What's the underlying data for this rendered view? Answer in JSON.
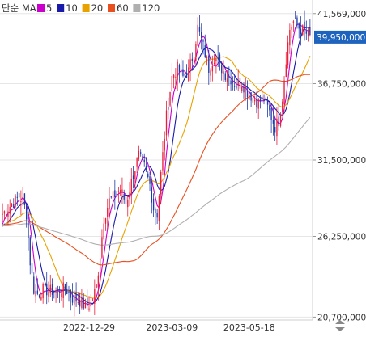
{
  "legend": {
    "prefix": "단순 MA",
    "items": [
      {
        "label": "5",
        "color": "#cc00cc"
      },
      {
        "label": "10",
        "color": "#1a1aaa"
      },
      {
        "label": "20",
        "color": "#e8a200"
      },
      {
        "label": "60",
        "color": "#e85020"
      },
      {
        "label": "120",
        "color": "#b0b0b0"
      }
    ]
  },
  "colors": {
    "up": "#e8203a",
    "down": "#1f3aa8",
    "price_tag": "#1e64be",
    "grid": "#e6e6e6",
    "text": "#333333"
  },
  "chart_data": {
    "type": "candlestick",
    "y_axis_labels": [
      "41,569,000",
      "36,750,000",
      "31,500,000",
      "26,250,000",
      "20,700,000"
    ],
    "y_ticks": [
      41569000,
      36750000,
      31500000,
      26250000,
      20700000
    ],
    "ylim": [
      20500000,
      42500000
    ],
    "x_tick_labels": [
      "2022-12-29",
      "2023-03-09",
      "2023-05-18"
    ],
    "current_price_label": "39,950,000",
    "current_price": 39950000,
    "anchors": [
      {
        "i": 0,
        "v": 27800000
      },
      {
        "i": 3,
        "v": 28200000
      },
      {
        "i": 6,
        "v": 28600000
      },
      {
        "i": 9,
        "v": 29000000
      },
      {
        "i": 11,
        "v": 28700000
      },
      {
        "i": 13,
        "v": 27800000
      },
      {
        "i": 15,
        "v": 24500000
      },
      {
        "i": 17,
        "v": 22600000
      },
      {
        "i": 19,
        "v": 22300000
      },
      {
        "i": 22,
        "v": 22600000
      },
      {
        "i": 26,
        "v": 22500000
      },
      {
        "i": 30,
        "v": 22500000
      },
      {
        "i": 34,
        "v": 22700000
      },
      {
        "i": 38,
        "v": 22000000
      },
      {
        "i": 42,
        "v": 21800000
      },
      {
        "i": 45,
        "v": 21400000
      },
      {
        "i": 48,
        "v": 21600000
      },
      {
        "i": 51,
        "v": 22800000
      },
      {
        "i": 53,
        "v": 25000000
      },
      {
        "i": 55,
        "v": 27500000
      },
      {
        "i": 58,
        "v": 28700000
      },
      {
        "i": 61,
        "v": 29100000
      },
      {
        "i": 64,
        "v": 29500000
      },
      {
        "i": 67,
        "v": 28500000
      },
      {
        "i": 71,
        "v": 30500000
      },
      {
        "i": 74,
        "v": 31800000
      },
      {
        "i": 77,
        "v": 31000000
      },
      {
        "i": 80,
        "v": 29800000
      },
      {
        "i": 82,
        "v": 28200000
      },
      {
        "i": 84,
        "v": 27800000
      },
      {
        "i": 86,
        "v": 30500000
      },
      {
        "i": 89,
        "v": 34500000
      },
      {
        "i": 92,
        "v": 37200000
      },
      {
        "i": 95,
        "v": 37800000
      },
      {
        "i": 98,
        "v": 37200000
      },
      {
        "i": 101,
        "v": 37600000
      },
      {
        "i": 104,
        "v": 39000000
      },
      {
        "i": 106,
        "v": 40600000
      },
      {
        "i": 109,
        "v": 39300000
      },
      {
        "i": 112,
        "v": 37800000
      },
      {
        "i": 115,
        "v": 38600000
      },
      {
        "i": 118,
        "v": 38000000
      },
      {
        "i": 121,
        "v": 37400000
      },
      {
        "i": 124,
        "v": 37100000
      },
      {
        "i": 127,
        "v": 36600000
      },
      {
        "i": 130,
        "v": 36800000
      },
      {
        "i": 133,
        "v": 36200000
      },
      {
        "i": 136,
        "v": 35800000
      },
      {
        "i": 139,
        "v": 35500000
      },
      {
        "i": 142,
        "v": 35700000
      },
      {
        "i": 145,
        "v": 34800000
      },
      {
        "i": 148,
        "v": 33800000
      },
      {
        "i": 150,
        "v": 34200000
      },
      {
        "i": 152,
        "v": 35800000
      },
      {
        "i": 154,
        "v": 38500000
      },
      {
        "i": 156,
        "v": 40500000
      },
      {
        "i": 158,
        "v": 41000000
      },
      {
        "i": 161,
        "v": 40600000
      },
      {
        "i": 164,
        "v": 40300000
      },
      {
        "i": 167,
        "v": 39950000
      }
    ]
  }
}
